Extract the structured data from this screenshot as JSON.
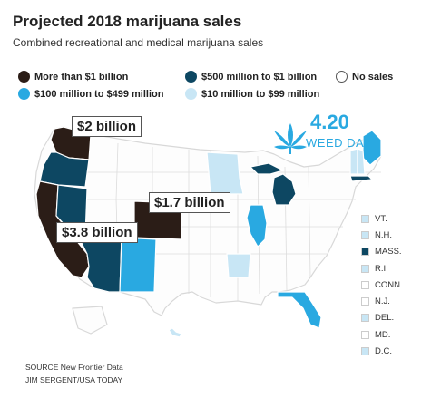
{
  "title": "Projected 2018 marijuana sales",
  "subtitle": "Combined recreational and medical marijuana sales",
  "legend": [
    {
      "label": "More than $1 billion",
      "color": "#2b1d17"
    },
    {
      "label": "$500 million to $1 billion",
      "color": "#0d4762"
    },
    {
      "label": "No sales",
      "color": "#ffffff"
    },
    {
      "label": "$100 million to $499 million",
      "color": "#29a9e1"
    },
    {
      "label": "$10 million to $99 million",
      "color": "#c8e6f5"
    }
  ],
  "callouts": {
    "washington": "$2 billion",
    "colorado": "$1.7 billion",
    "california": "$3.8 billion"
  },
  "weed_day": {
    "number": "4.20",
    "text": "WEED DAY",
    "icon": "cannabis-leaf-icon"
  },
  "small_states": [
    {
      "abbr": "VT.",
      "color": "#c8e6f5"
    },
    {
      "abbr": "N.H.",
      "color": "#c8e6f5"
    },
    {
      "abbr": "MASS.",
      "color": "#0d4762"
    },
    {
      "abbr": "R.I.",
      "color": "#c8e6f5"
    },
    {
      "abbr": "CONN.",
      "color": "#ffffff"
    },
    {
      "abbr": "N.J.",
      "color": "#ffffff"
    },
    {
      "abbr": "DEL.",
      "color": "#c8e6f5"
    },
    {
      "abbr": "MD.",
      "color": "#ffffff"
    },
    {
      "abbr": "D.C.",
      "color": "#c8e6f5"
    }
  ],
  "source": "SOURCE New Frontier Data",
  "credit": "JIM SERGENT/USA TODAY"
}
